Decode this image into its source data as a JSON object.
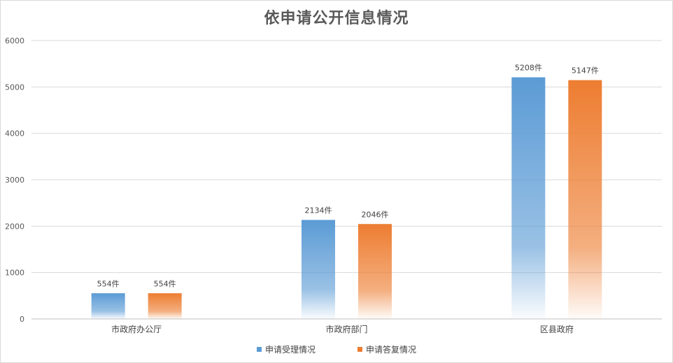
{
  "chart_data": {
    "type": "bar",
    "title": "依申请公开信息情况",
    "categories": [
      "市政府办公厅",
      "市政府部门",
      "区县政府"
    ],
    "series": [
      {
        "name": "申请受理情况",
        "values": [
          554,
          2134,
          5208
        ],
        "labels": [
          "554件",
          "2134件",
          "5208件"
        ],
        "color": "#5b9bd5"
      },
      {
        "name": "申请答复情况",
        "values": [
          554,
          2046,
          5147
        ],
        "labels": [
          "554件",
          "2046件",
          "5147件"
        ],
        "color": "#ed7d31"
      }
    ],
    "ylim": [
      0,
      6000
    ],
    "yticks": [
      0,
      1000,
      2000,
      3000,
      4000,
      5000,
      6000
    ],
    "grid": true,
    "legend": "bottom"
  }
}
